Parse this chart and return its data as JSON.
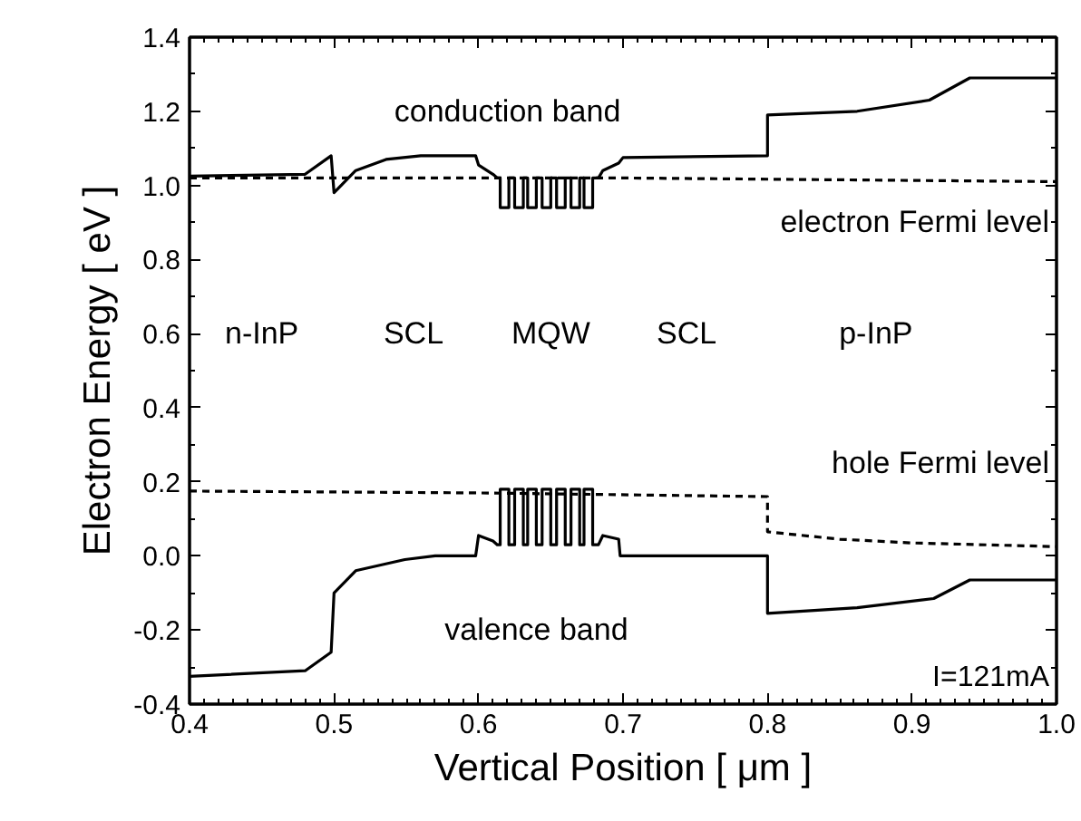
{
  "chart_data": {
    "type": "line",
    "xlabel": "Vertical Position [ μm ]",
    "ylabel": "Electron Energy [ eV ]",
    "xlim": [
      0.4,
      1.0
    ],
    "ylim": [
      -0.4,
      1.4
    ],
    "xticks": [
      {
        "value": 0.4,
        "label": "0.4"
      },
      {
        "value": 0.5,
        "label": "0.5"
      },
      {
        "value": 0.6,
        "label": "0.6"
      },
      {
        "value": 0.7,
        "label": "0.7"
      },
      {
        "value": 0.8,
        "label": "0.8"
      },
      {
        "value": 0.9,
        "label": "0.9"
      },
      {
        "value": 1.0,
        "label": "1.0"
      }
    ],
    "yticks": [
      {
        "value": -0.4,
        "label": "-0.4"
      },
      {
        "value": -0.2,
        "label": "-0.2"
      },
      {
        "value": 0.0,
        "label": "0.0"
      },
      {
        "value": 0.2,
        "label": "0.2"
      },
      {
        "value": 0.4,
        "label": "0.4"
      },
      {
        "value": 0.6,
        "label": "0.6"
      },
      {
        "value": 0.8,
        "label": "0.8"
      },
      {
        "value": 1.0,
        "label": "1.0"
      },
      {
        "value": 1.2,
        "label": "1.2"
      },
      {
        "value": 1.4,
        "label": "1.4"
      }
    ],
    "grid": false,
    "marker": "none",
    "series": [
      {
        "color": "#000000",
        "line_style": "solid",
        "x": [
          0.4,
          0.48,
          0.498,
          0.5,
          0.515,
          0.536,
          0.56,
          0.598,
          0.6,
          0.61,
          0.613,
          0.615,
          0.615,
          0.621,
          0.621,
          0.625,
          0.625,
          0.631,
          0.631,
          0.634,
          0.634,
          0.64,
          0.64,
          0.644,
          0.644,
          0.65,
          0.65,
          0.654,
          0.654,
          0.66,
          0.66,
          0.664,
          0.664,
          0.67,
          0.67,
          0.673,
          0.673,
          0.679,
          0.679,
          0.683,
          0.686,
          0.697,
          0.7,
          0.8,
          0.8,
          0.862,
          0.912,
          0.94,
          1.0
        ],
        "values": [
          1.025,
          1.03,
          1.08,
          0.98,
          1.04,
          1.07,
          1.08,
          1.08,
          1.055,
          1.03,
          1.02,
          1.02,
          0.94,
          0.94,
          1.02,
          1.02,
          0.94,
          0.94,
          1.02,
          1.02,
          0.94,
          0.94,
          1.02,
          1.02,
          0.94,
          0.94,
          1.02,
          1.02,
          0.94,
          0.94,
          1.02,
          1.02,
          0.94,
          0.94,
          1.02,
          1.02,
          0.94,
          0.94,
          1.02,
          1.02,
          1.04,
          1.06,
          1.075,
          1.08,
          1.19,
          1.2,
          1.23,
          1.29,
          1.29
        ]
      },
      {
        "color": "#000000",
        "line_style": "dashed",
        "x": [
          0.4,
          0.7,
          1.0
        ],
        "values": [
          1.02,
          1.02,
          1.01
        ]
      },
      {
        "color": "#000000",
        "line_style": "dashed",
        "x": [
          0.4,
          0.6,
          0.8,
          0.8,
          0.85,
          0.9,
          1.0
        ],
        "values": [
          0.175,
          0.17,
          0.16,
          0.065,
          0.045,
          0.035,
          0.025
        ]
      },
      {
        "color": "#000000",
        "line_style": "solid",
        "x": [
          0.4,
          0.48,
          0.498,
          0.5,
          0.515,
          0.549,
          0.57,
          0.598,
          0.6,
          0.61,
          0.613,
          0.615,
          0.615,
          0.621,
          0.621,
          0.625,
          0.625,
          0.631,
          0.631,
          0.634,
          0.634,
          0.64,
          0.64,
          0.644,
          0.644,
          0.65,
          0.65,
          0.654,
          0.654,
          0.66,
          0.66,
          0.664,
          0.664,
          0.67,
          0.67,
          0.673,
          0.673,
          0.679,
          0.679,
          0.683,
          0.686,
          0.697,
          0.698,
          0.8,
          0.8,
          0.862,
          0.915,
          0.94,
          1.0
        ],
        "values": [
          -0.325,
          -0.31,
          -0.26,
          -0.1,
          -0.04,
          -0.01,
          0.0,
          0.0,
          0.055,
          0.04,
          0.03,
          0.03,
          0.18,
          0.18,
          0.03,
          0.03,
          0.18,
          0.18,
          0.03,
          0.03,
          0.18,
          0.18,
          0.03,
          0.03,
          0.18,
          0.18,
          0.03,
          0.03,
          0.18,
          0.18,
          0.03,
          0.03,
          0.18,
          0.18,
          0.03,
          0.03,
          0.18,
          0.18,
          0.03,
          0.03,
          0.055,
          0.045,
          0.0,
          0.0,
          -0.155,
          -0.14,
          -0.115,
          -0.065,
          -0.065
        ]
      }
    ],
    "annotations": [
      "conduction band",
      "electron Fermi level",
      "hole Fermi level",
      "valence band",
      "n-InP",
      "SCL",
      "MQW",
      "SCL",
      "p-InP",
      "I=121mA"
    ]
  }
}
